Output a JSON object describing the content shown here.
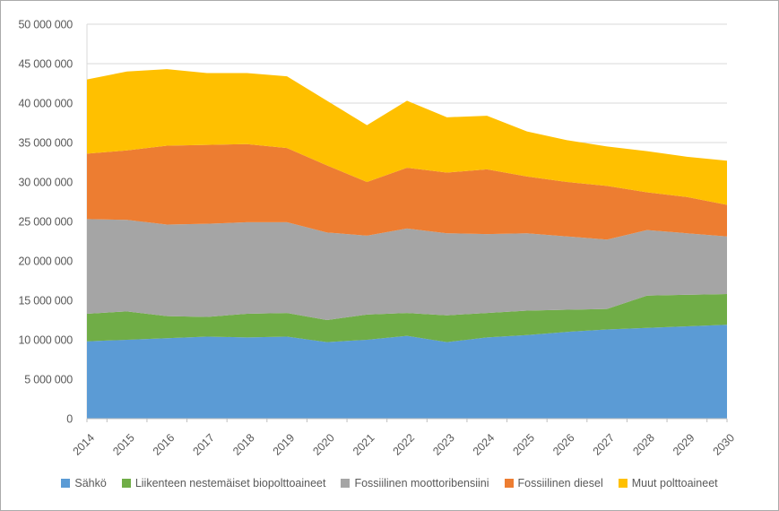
{
  "chart_data": {
    "type": "area",
    "stacked": true,
    "title": "",
    "xlabel": "",
    "ylabel": "",
    "grid": true,
    "legend_position": "bottom",
    "ylim": [
      0,
      50000000
    ],
    "y_tick_step": 5000000,
    "y_tick_values": [
      0,
      5000000,
      10000000,
      15000000,
      20000000,
      25000000,
      30000000,
      35000000,
      40000000,
      45000000,
      50000000
    ],
    "x": [
      2014,
      2015,
      2016,
      2017,
      2018,
      2019,
      2020,
      2021,
      2022,
      2023,
      2024,
      2025,
      2026,
      2027,
      2028,
      2029,
      2030
    ],
    "series": [
      {
        "name": "Sähkö",
        "color": "#5B9BD5",
        "values": [
          9800000,
          10000000,
          10200000,
          10400000,
          10300000,
          10400000,
          9700000,
          10000000,
          10500000,
          9700000,
          10300000,
          10600000,
          11000000,
          11300000,
          11500000,
          11700000,
          11900000
        ]
      },
      {
        "name": "Liikenteen nestemäiset biopolttoaineet",
        "color": "#70AD47",
        "values": [
          3500000,
          3600000,
          2800000,
          2500000,
          3000000,
          3000000,
          2800000,
          3200000,
          2900000,
          3400000,
          3100000,
          3100000,
          2800000,
          2600000,
          4100000,
          4000000,
          3900000
        ]
      },
      {
        "name": "Fossiilinen moottoribensiini",
        "color": "#A5A5A5",
        "values": [
          12000000,
          11600000,
          11600000,
          11800000,
          11600000,
          11500000,
          11100000,
          10000000,
          10700000,
          10400000,
          10000000,
          9800000,
          9300000,
          8800000,
          8300000,
          7800000,
          7300000
        ]
      },
      {
        "name": "Fossiilinen diesel",
        "color": "#ED7D31",
        "values": [
          8300000,
          8800000,
          10000000,
          10000000,
          9900000,
          9400000,
          8500000,
          6800000,
          7700000,
          7700000,
          8200000,
          7200000,
          6900000,
          6800000,
          4800000,
          4600000,
          4000000
        ]
      },
      {
        "name": "Muut polttoaineet",
        "color": "#FFC000",
        "values": [
          9400000,
          10000000,
          9700000,
          9100000,
          9000000,
          9100000,
          8200000,
          7200000,
          8500000,
          7000000,
          6800000,
          5700000,
          5300000,
          5000000,
          5200000,
          5100000,
          5600000
        ]
      }
    ]
  },
  "style_colors": {
    "axis_text": "#595959",
    "gridline": "#D9D9D9",
    "axis_line": "#BFBFBF",
    "border": "#ABABAB",
    "background": "#FFFFFF"
  }
}
